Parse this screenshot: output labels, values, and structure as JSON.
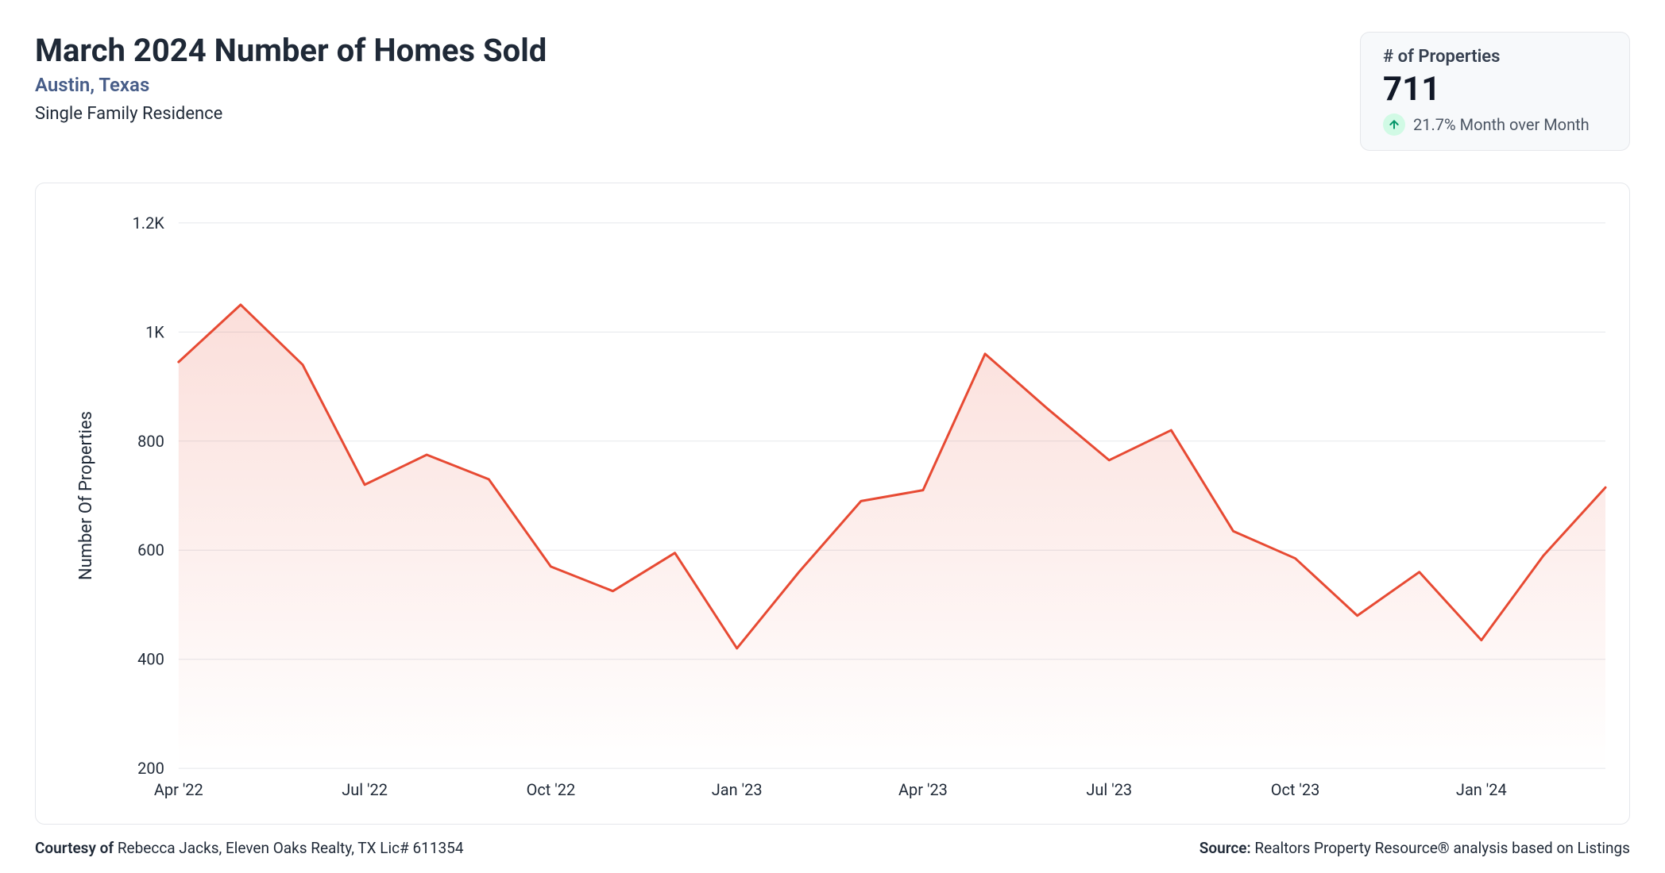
{
  "header": {
    "title": "March 2024 Number of Homes Sold",
    "location": "Austin, Texas",
    "subtype": "Single Family Residence"
  },
  "stat_card": {
    "label": "# of Properties",
    "value": "711",
    "change_text": "21.7% Month over Month",
    "change_direction": "up",
    "badge_bg": "#d1fae5",
    "arrow_color": "#059669"
  },
  "chart": {
    "type": "area-line",
    "y_axis_title": "Number Of Properties",
    "line_color": "#e74a33",
    "line_width": 3,
    "fill_top_color": "rgba(231,74,51,0.18)",
    "fill_bottom_color": "rgba(231,74,51,0.0)",
    "grid_color": "#e5e7eb",
    "background_color": "#ffffff",
    "ylim": [
      200,
      1200
    ],
    "y_ticks": [
      200,
      400,
      600,
      800,
      1000,
      1200
    ],
    "y_tick_labels": [
      "200",
      "400",
      "600",
      "800",
      "1K",
      "1.2K"
    ],
    "x_labels": [
      "Apr '22",
      "",
      "",
      "Jul '22",
      "",
      "",
      "Oct '22",
      "",
      "",
      "Jan '23",
      "",
      "",
      "Apr '23",
      "",
      "",
      "Jul '23",
      "",
      "",
      "Oct '23",
      "",
      "",
      "Jan '24",
      "",
      ""
    ],
    "x_tick_every": 3,
    "values": [
      945,
      1050,
      940,
      720,
      775,
      730,
      570,
      525,
      595,
      420,
      560,
      690,
      710,
      960,
      860,
      765,
      820,
      635,
      585,
      480,
      560,
      435,
      590,
      715
    ],
    "tick_fontsize": 20,
    "axis_title_fontsize": 22
  },
  "footer": {
    "courtesy_prefix": "Courtesy of ",
    "courtesy_text": "Rebecca Jacks, Eleven Oaks Realty, TX Lic# 611354",
    "source_prefix": "Source: ",
    "source_text": "Realtors Property Resource® analysis based on Listings"
  }
}
